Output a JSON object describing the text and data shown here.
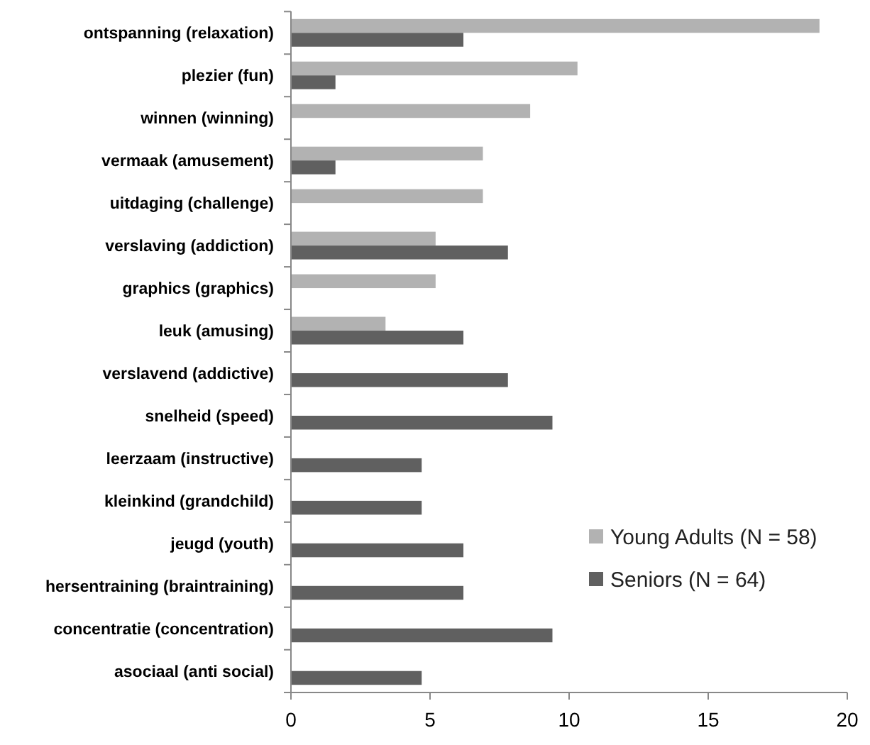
{
  "chart_data": {
    "type": "bar",
    "orientation": "horizontal",
    "categories": [
      "ontspanning (relaxation)",
      "plezier (fun)",
      "winnen (winning)",
      "vermaak (amusement)",
      "uitdaging (challenge)",
      "verslaving (addiction)",
      "graphics (graphics)",
      "leuk (amusing)",
      "verslavend (addictive)",
      "snelheid (speed)",
      "leerzaam (instructive)",
      "kleinkind (grandchild)",
      "jeugd (youth)",
      "hersentraining (braintraining)",
      "concentratie (concentration)",
      "asociaal (anti social)"
    ],
    "series": [
      {
        "name": "Young Adults (N = 58)",
        "color": "#b2b2b2",
        "values": [
          19.0,
          10.3,
          8.6,
          6.9,
          6.9,
          5.2,
          5.2,
          3.4,
          null,
          null,
          null,
          null,
          null,
          null,
          null,
          null
        ]
      },
      {
        "name": "Seniors (N = 64)",
        "color": "#606060",
        "values": [
          6.2,
          1.6,
          null,
          1.6,
          null,
          7.8,
          null,
          6.2,
          7.8,
          9.4,
          4.7,
          4.7,
          6.2,
          6.2,
          9.4,
          4.7
        ]
      }
    ],
    "xlim": [
      0,
      20
    ],
    "xticks": [
      0,
      5,
      10,
      15,
      20
    ],
    "grid": false,
    "legend": "bottom right"
  }
}
